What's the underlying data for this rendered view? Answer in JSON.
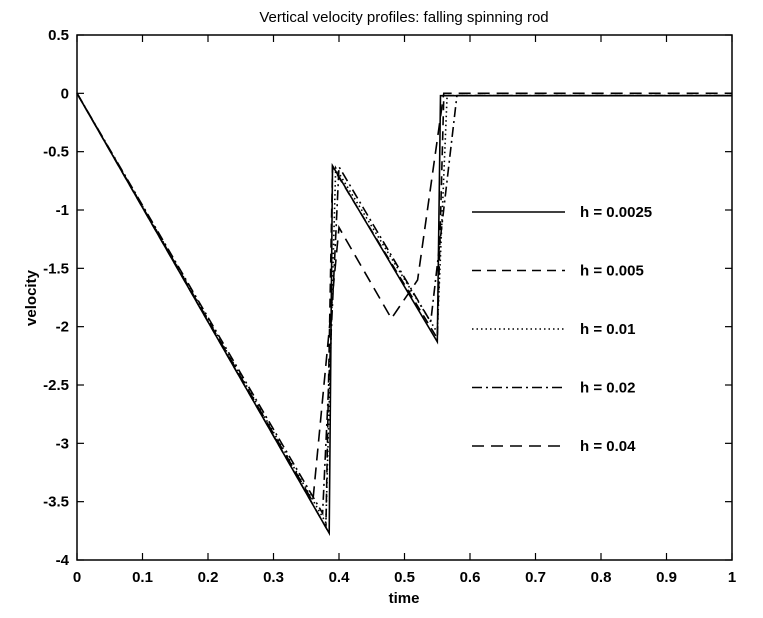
{
  "chart_data": {
    "type": "line",
    "title": "Vertical velocity profiles: falling spinning rod",
    "xlabel": "time",
    "ylabel": "velocity",
    "xlim": [
      0,
      1
    ],
    "ylim": [
      -4,
      0.5
    ],
    "xticks": [
      "0",
      "0.1",
      "0.2",
      "0.3",
      "0.4",
      "0.5",
      "0.6",
      "0.7",
      "0.8",
      "0.9",
      "1"
    ],
    "yticks": [
      "0.5",
      "0",
      "-0.5",
      "-1",
      "-1.5",
      "-2",
      "-2.5",
      "-3",
      "-3.5",
      "-4"
    ],
    "grid": false,
    "legend_position": "right",
    "series": [
      {
        "name": "h = 0.0025",
        "style": "solid",
        "x": [
          0,
          0.385,
          0.39,
          0.55,
          0.555,
          1.0
        ],
        "y": [
          0,
          -3.77,
          -0.62,
          -2.13,
          -0.02,
          -0.02
        ]
      },
      {
        "name": "h = 0.005",
        "style": "dashed",
        "x": [
          0,
          0.38,
          0.39,
          0.55,
          0.56,
          1.0
        ],
        "y": [
          0,
          -3.72,
          -0.63,
          -2.1,
          -0.02,
          -0.02
        ]
      },
      {
        "name": "h = 0.01",
        "style": "dotted",
        "x": [
          0,
          0.38,
          0.395,
          0.55,
          0.565,
          1.0
        ],
        "y": [
          0,
          -3.68,
          -0.64,
          -2.05,
          -0.02,
          -0.02
        ]
      },
      {
        "name": "h = 0.02",
        "style": "dashdot",
        "x": [
          0,
          0.375,
          0.4,
          0.54,
          0.58,
          1.0
        ],
        "y": [
          0,
          -3.6,
          -0.63,
          -1.96,
          -0.02,
          -0.02
        ]
      },
      {
        "name": "h = 0.04",
        "style": "dashed-long",
        "x": [
          0,
          0.36,
          0.4,
          0.48,
          0.52,
          0.56,
          1.0
        ],
        "y": [
          0,
          -3.5,
          -1.15,
          -1.93,
          -1.6,
          0.0,
          0.0
        ]
      }
    ]
  }
}
